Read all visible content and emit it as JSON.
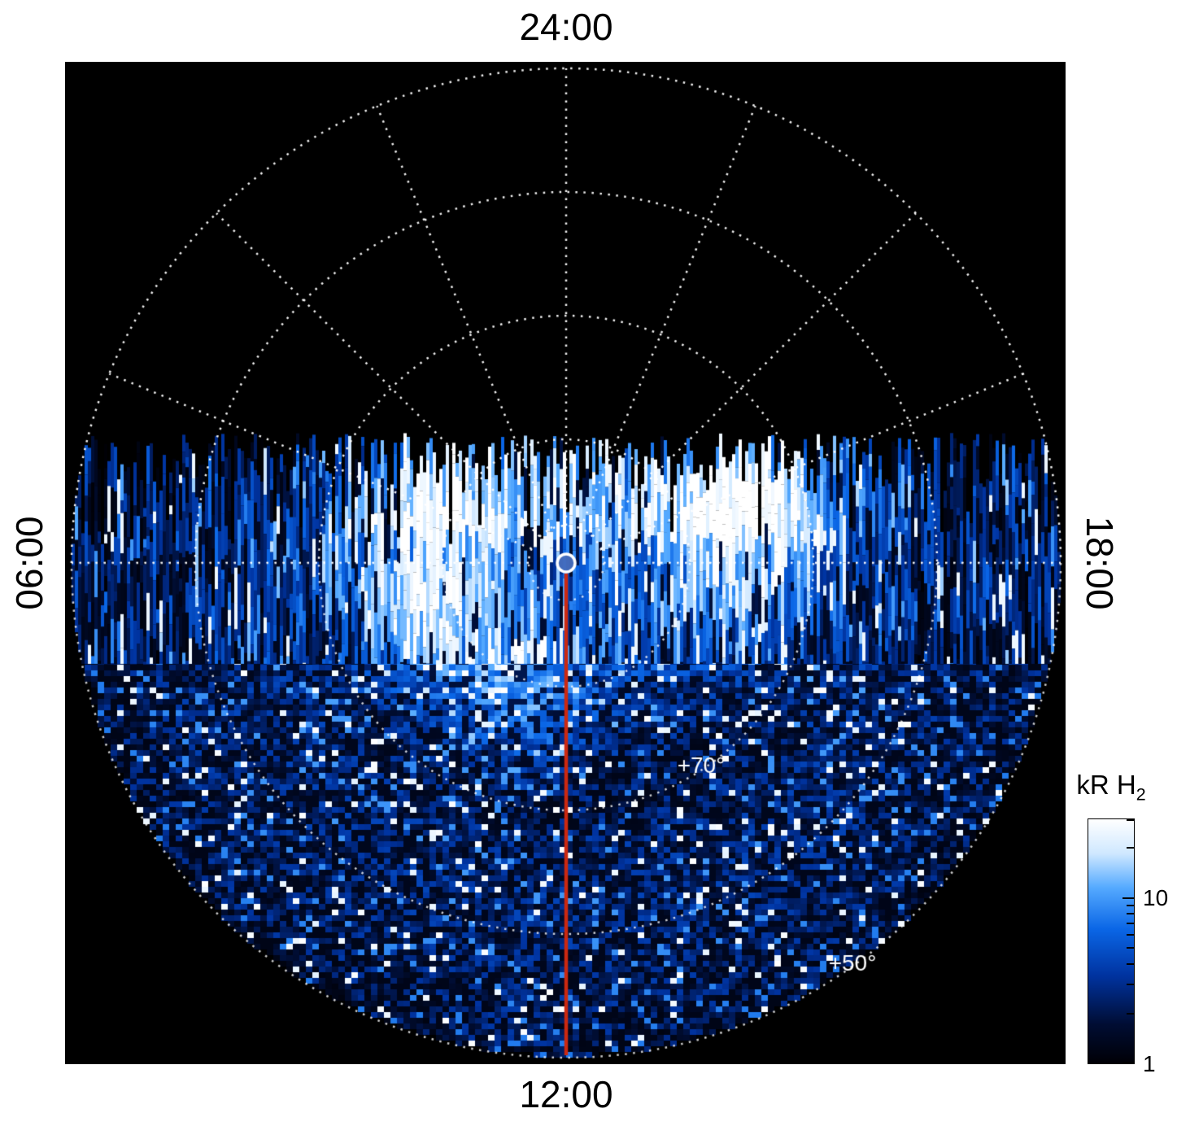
{
  "figure": {
    "background": "#ffffff",
    "plot_background": "#000000"
  },
  "chart_data": {
    "type": "heatmap",
    "projection": "polar",
    "description": "Polar projection map of H2 auroral emission versus latitude and local time. The dayside half (06:00 through 12:00 to 18:00) is filled with noisy blue-to-white emission pixels with bright white auroral patches near 75-80 degrees latitude; the nightside half (through 24:00) contains no data (black). A dotted white latitude/local-time grid overlays the map and a red meridian line marks 12:00 local time from the pole to the outer edge.",
    "angular_labels": [
      {
        "position": "top",
        "label": "24:00"
      },
      {
        "position": "bottom",
        "label": "12:00"
      },
      {
        "position": "left",
        "label": "06:00"
      },
      {
        "position": "right",
        "label": "18:00"
      }
    ],
    "latitude_rings_deg": [
      80,
      70,
      60,
      50
    ],
    "outer_latitude_deg": 50,
    "pole_latitude_deg": 90,
    "ring_labels": [
      {
        "label": "+70°",
        "ring_deg": 70
      },
      {
        "label": "+50°",
        "ring_deg": 50
      }
    ],
    "grid": {
      "style": "dotted",
      "color": "#ffffff",
      "latitude_step_deg": 10,
      "local_time_step_hours": 1.5
    },
    "meridian_line": {
      "local_time": "12:00",
      "color": "#cc2810"
    },
    "pole_marker": {
      "shape": "circle-outline",
      "color": "#ffffff"
    },
    "colorbar": {
      "label_main": "kR H",
      "label_sub": "2",
      "scale": "log",
      "range": [
        1,
        30
      ],
      "ticks": [
        10,
        1
      ],
      "minor_ticks": [
        2,
        3,
        4,
        5,
        6,
        7,
        8,
        9,
        20,
        30
      ],
      "gradient": [
        [
          0.0,
          "#000006"
        ],
        [
          0.16,
          "#000d33"
        ],
        [
          0.36,
          "#0033a0"
        ],
        [
          0.55,
          "#0a66e6"
        ],
        [
          0.72,
          "#55aaff"
        ],
        [
          0.86,
          "#cfe8ff"
        ],
        [
          1.0,
          "#ffffff"
        ]
      ]
    },
    "noise": {
      "seed": 1337,
      "data_half": "bottom",
      "bright_regions": "two bright auroral oval patches near dawn-noon and noon-dusk sectors at high latitude, plus bright vertical streaks along the terminator boundary"
    }
  }
}
